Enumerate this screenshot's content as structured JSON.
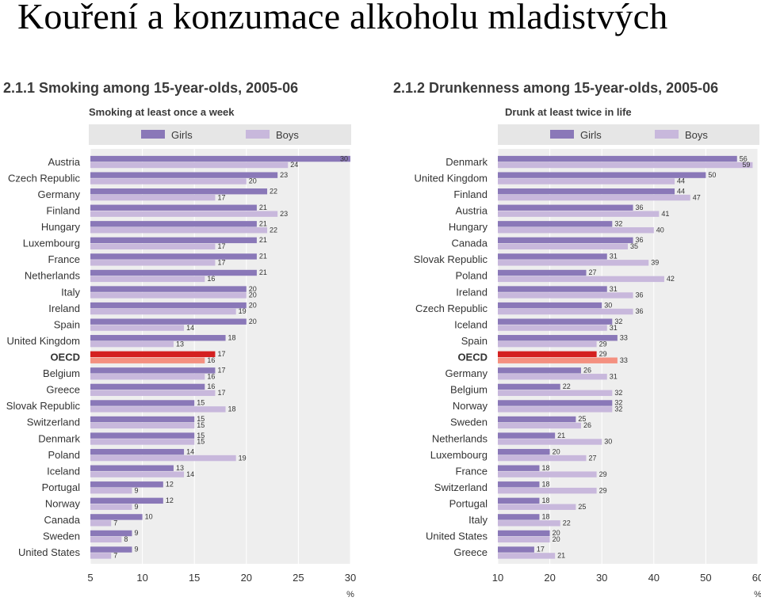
{
  "slide": {
    "title": "Kouření a konzumace alkoholu mladistvých"
  },
  "chart_data": [
    {
      "type": "bar",
      "orientation": "horizontal",
      "title": "2.1.1 Smoking among 15-year-olds, 2005-06",
      "subtitle": "Smoking at least once a week",
      "unit": "%",
      "xlim": [
        5,
        30
      ],
      "ticks": [
        5,
        10,
        15,
        20,
        25,
        30
      ],
      "legend_position": "top",
      "colors": {
        "Girls": "#8a78b8",
        "Boys": "#c8b8dc",
        "OECD Girls": "#d42020",
        "OECD Boys": "#f49080"
      },
      "categories": [
        "Austria",
        "Czech Republic",
        "Germany",
        "Finland",
        "Hungary",
        "Luxembourg",
        "France",
        "Netherlands",
        "Italy",
        "Ireland",
        "Spain",
        "United Kingdom",
        "OECD",
        "Belgium",
        "Greece",
        "Slovak Republic",
        "Switzerland",
        "Denmark",
        "Poland",
        "Iceland",
        "Portugal",
        "Norway",
        "Canada",
        "Sweden",
        "United States"
      ],
      "series": [
        {
          "name": "Girls",
          "values": [
            30,
            23,
            22,
            21,
            21,
            21,
            21,
            21,
            20,
            20,
            20,
            18,
            17,
            17,
            16,
            15,
            15,
            15,
            14,
            13,
            12,
            12,
            10,
            9,
            9
          ]
        },
        {
          "name": "Boys",
          "values": [
            24,
            20,
            17,
            23,
            22,
            17,
            17,
            16,
            20,
            19,
            14,
            13,
            16,
            16,
            17,
            18,
            15,
            15,
            19,
            14,
            9,
            9,
            7,
            8,
            7
          ]
        }
      ]
    },
    {
      "type": "bar",
      "orientation": "horizontal",
      "title": "2.1.2 Drunkenness among 15-year-olds, 2005-06",
      "subtitle": "Drunk at least twice in life",
      "unit": "%",
      "xlim": [
        10,
        60
      ],
      "ticks": [
        10,
        20,
        30,
        40,
        50,
        60
      ],
      "legend_position": "top",
      "colors": {
        "Girls": "#8a78b8",
        "Boys": "#c8b8dc",
        "OECD Girls": "#d42020",
        "OECD Boys": "#f49080"
      },
      "categories": [
        "Denmark",
        "United Kingdom",
        "Finland",
        "Austria",
        "Hungary",
        "Canada",
        "Slovak Republic",
        "Poland",
        "Ireland",
        "Czech Republic",
        "Iceland",
        "Spain",
        "OECD",
        "Germany",
        "Belgium",
        "Norway",
        "Sweden",
        "Netherlands",
        "Luxembourg",
        "France",
        "Switzerland",
        "Portugal",
        "Italy",
        "United States",
        "Greece"
      ],
      "series": [
        {
          "name": "Girls",
          "values": [
            56,
            50,
            44,
            36,
            32,
            36,
            31,
            27,
            31,
            30,
            32,
            33,
            29,
            26,
            22,
            32,
            25,
            21,
            20,
            18,
            18,
            18,
            18,
            20,
            17
          ]
        },
        {
          "name": "Boys",
          "values": [
            59,
            44,
            47,
            41,
            40,
            35,
            39,
            42,
            36,
            36,
            31,
            29,
            33,
            31,
            32,
            32,
            26,
            30,
            27,
            29,
            29,
            25,
            22,
            20,
            21
          ]
        }
      ]
    }
  ]
}
